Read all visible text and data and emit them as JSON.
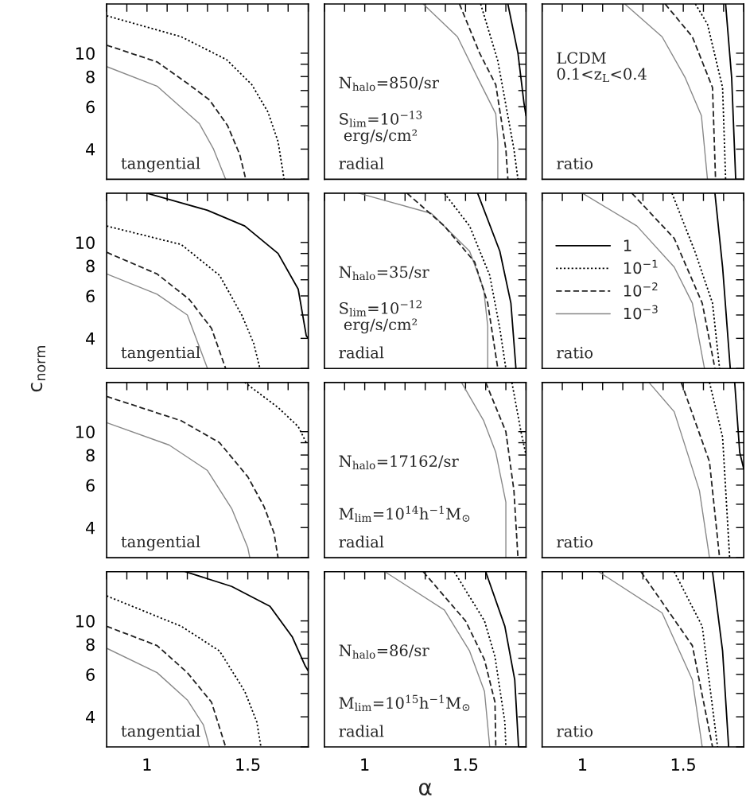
{
  "chart_data": [
    {
      "type": "line",
      "log": "y",
      "xlim": [
        0.8,
        1.8
      ],
      "ylim": [
        3,
        16
      ],
      "tick_labels": "y",
      "xticks": [
        {
          "value": 0.8,
          "label": null
        },
        {
          "value": 0.9,
          "label": null
        },
        1,
        {
          "value": 1.1,
          "label": null
        },
        {
          "value": 1.2,
          "label": null
        },
        {
          "value": 1.3,
          "label": null
        },
        {
          "value": 1.4,
          "label": null
        },
        1.5,
        {
          "value": 1.6,
          "label": null
        },
        {
          "value": 1.7,
          "label": null
        },
        {
          "value": 1.8,
          "label": null
        }
      ],
      "yticks": [
        {
          "value": 3,
          "label": null
        },
        4,
        {
          "value": 5,
          "label": null
        },
        6,
        {
          "value": 7,
          "label": null
        },
        8,
        {
          "value": 9,
          "label": null
        },
        10
      ],
      "annotations": [
        "tangential"
      ],
      "series": [
        {
          "color": "#000000",
          "line_style": "dotted",
          "x": [
            0.8,
            1.17,
            1.395,
            1.52,
            1.6,
            1.65,
            1.68
          ],
          "values": [
            14.3,
            11.7,
            9.4,
            7.4,
            5.7,
            4.3,
            3.0
          ]
        },
        {
          "color": "#222222",
          "line_style": "dashed",
          "x": [
            0.8,
            1.05,
            1.2,
            1.31,
            1.4,
            1.46,
            1.49
          ],
          "values": [
            10.8,
            9.2,
            7.5,
            6.4,
            5.0,
            3.8,
            3.0
          ]
        },
        {
          "color": "#888888",
          "line_style": "solid",
          "x": [
            0.8,
            1.05,
            1.26,
            1.33,
            1.39
          ],
          "values": [
            8.8,
            7.3,
            5.1,
            4.0,
            3.0
          ]
        }
      ]
    },
    {
      "type": "line",
      "log": "y",
      "xlim": [
        0.8,
        1.8
      ],
      "ylim": [
        3,
        16
      ],
      "tick_labels": false,
      "xticks": [
        {
          "value": 0.8,
          "label": null
        },
        {
          "value": 0.9,
          "label": null
        },
        1,
        {
          "value": 1.1,
          "label": null
        },
        {
          "value": 1.2,
          "label": null
        },
        {
          "value": 1.3,
          "label": null
        },
        {
          "value": 1.4,
          "label": null
        },
        1.5,
        {
          "value": 1.6,
          "label": null
        },
        {
          "value": 1.7,
          "label": null
        },
        {
          "value": 1.8,
          "label": null
        }
      ],
      "yticks": [
        {
          "value": 3,
          "label": null
        },
        4,
        {
          "value": 5,
          "label": null
        },
        6,
        {
          "value": 7,
          "label": null
        },
        8,
        {
          "value": 9,
          "label": null
        },
        10
      ],
      "annotations": [
        "N$_{halo}$=850/sr",
        "S$_{lim}$=10$^{−13}$\n erg/s/cm²",
        "radial"
      ],
      "series": [
        {
          "color": "#888888",
          "line_style": "solid",
          "x": [
            1.29,
            1.46,
            1.56,
            1.65,
            1.66,
            1.66
          ],
          "values": [
            16,
            11.7,
            7.9,
            5.6,
            4.3,
            3.0
          ]
        },
        {
          "color": "#222222",
          "line_style": "dashed",
          "x": [
            1.47,
            1.57,
            1.65,
            1.7,
            1.71
          ],
          "values": [
            16,
            10.0,
            7.4,
            4.0,
            3.0
          ]
        },
        {
          "color": "#000000",
          "line_style": "dotted",
          "x": [
            1.575,
            1.66,
            1.74,
            1.76
          ],
          "values": [
            16,
            9.3,
            4.0,
            3.0
          ]
        },
        {
          "color": "#000000",
          "line_style": "solid",
          "x": [
            1.71,
            1.76,
            1.79,
            1.8
          ],
          "values": [
            16,
            10,
            6.2,
            5.5
          ]
        }
      ]
    },
    {
      "type": "line",
      "log": "y",
      "xlim": [
        0.8,
        1.8
      ],
      "ylim": [
        3,
        16
      ],
      "tick_labels": false,
      "xticks": [
        {
          "value": 0.8,
          "label": null
        },
        {
          "value": 0.9,
          "label": null
        },
        1,
        {
          "value": 1.1,
          "label": null
        },
        {
          "value": 1.2,
          "label": null
        },
        {
          "value": 1.3,
          "label": null
        },
        {
          "value": 1.4,
          "label": null
        },
        1.5,
        {
          "value": 1.6,
          "label": null
        },
        {
          "value": 1.7,
          "label": null
        },
        {
          "value": 1.8,
          "label": null
        }
      ],
      "yticks": [
        {
          "value": 3,
          "label": null
        },
        4,
        {
          "value": 5,
          "label": null
        },
        6,
        {
          "value": 7,
          "label": null
        },
        8,
        {
          "value": 9,
          "label": null
        },
        10
      ],
      "annotations": [
        "LCDM\n0.1<z$_{L}$<0.4",
        "ratio"
      ],
      "series": [
        {
          "color": "#888888",
          "line_style": "solid",
          "x": [
            1.21,
            1.395,
            1.51,
            1.59,
            1.62
          ],
          "values": [
            16,
            11.7,
            7.9,
            5.5,
            3.0
          ]
        },
        {
          "color": "#222222",
          "line_style": "dashed",
          "x": [
            1.41,
            1.545,
            1.645,
            1.66
          ],
          "values": [
            16,
            11.7,
            7.2,
            3.0
          ]
        },
        {
          "color": "#000000",
          "line_style": "dotted",
          "x": [
            1.56,
            1.62,
            1.695,
            1.71
          ],
          "values": [
            16,
            13.2,
            7.2,
            3.0
          ]
        },
        {
          "color": "#000000",
          "line_style": "solid",
          "x": [
            1.71,
            1.74,
            1.76
          ],
          "values": [
            16,
            7.9,
            3.0
          ]
        }
      ]
    },
    {
      "type": "line",
      "log": "y",
      "xlim": [
        0.8,
        1.8
      ],
      "ylim": [
        3,
        16
      ],
      "tick_labels": "y",
      "ylabel": "c$_{norm}$",
      "xticks": [
        {
          "value": 0.8,
          "label": null
        },
        {
          "value": 0.9,
          "label": null
        },
        1,
        {
          "value": 1.1,
          "label": null
        },
        {
          "value": 1.2,
          "label": null
        },
        {
          "value": 1.3,
          "label": null
        },
        {
          "value": 1.4,
          "label": null
        },
        1.5,
        {
          "value": 1.6,
          "label": null
        },
        {
          "value": 1.7,
          "label": null
        },
        {
          "value": 1.8,
          "label": null
        }
      ],
      "yticks": [
        {
          "value": 3,
          "label": null
        },
        4,
        {
          "value": 5,
          "label": null
        },
        6,
        {
          "value": 7,
          "label": null
        },
        8,
        {
          "value": 9,
          "label": null
        },
        10
      ],
      "annotations": [
        "tangential"
      ],
      "series": [
        {
          "color": "#000000",
          "line_style": "solid",
          "x": [
            1.0,
            1.3,
            1.485,
            1.65,
            1.75,
            1.79,
            1.8
          ],
          "values": [
            16,
            13.6,
            11.7,
            9.0,
            6.4,
            4.1,
            4.0
          ]
        },
        {
          "color": "#000000",
          "line_style": "dotted",
          "x": [
            0.8,
            1.17,
            1.36,
            1.47,
            1.53,
            1.56
          ],
          "values": [
            11.7,
            9.8,
            7.3,
            5.0,
            3.8,
            3.0
          ]
        },
        {
          "color": "#222222",
          "line_style": "dashed",
          "x": [
            0.8,
            1.05,
            1.21,
            1.32,
            1.39
          ],
          "values": [
            9.1,
            7.4,
            5.8,
            4.4,
            3.0
          ]
        },
        {
          "color": "#888888",
          "line_style": "solid",
          "x": [
            0.8,
            1.05,
            1.2,
            1.3
          ],
          "values": [
            7.4,
            6.1,
            5.0,
            3.0
          ]
        }
      ]
    },
    {
      "type": "line",
      "log": "y",
      "xlim": [
        0.8,
        1.8
      ],
      "ylim": [
        3,
        16
      ],
      "tick_labels": false,
      "xticks": [
        {
          "value": 0.8,
          "label": null
        },
        {
          "value": 0.9,
          "label": null
        },
        1,
        {
          "value": 1.1,
          "label": null
        },
        {
          "value": 1.2,
          "label": null
        },
        {
          "value": 1.3,
          "label": null
        },
        {
          "value": 1.4,
          "label": null
        },
        1.5,
        {
          "value": 1.6,
          "label": null
        },
        {
          "value": 1.7,
          "label": null
        },
        {
          "value": 1.8,
          "label": null
        }
      ],
      "yticks": [
        {
          "value": 3,
          "label": null
        },
        4,
        {
          "value": 5,
          "label": null
        },
        6,
        {
          "value": 7,
          "label": null
        },
        8,
        {
          "value": 9,
          "label": null
        },
        10
      ],
      "annotations": [
        "N$_{halo}$=35/sr",
        "S$_{lim}$=10$^{−12}$\n erg/s/cm²",
        "radial"
      ],
      "series": [
        {
          "color": "#888888",
          "line_style": "solid",
          "x": [
            0.97,
            1.33,
            1.52,
            1.59,
            1.61,
            1.61
          ],
          "values": [
            16,
            13.2,
            9.2,
            6.4,
            4.5,
            3.0
          ]
        },
        {
          "color": "#222222",
          "line_style": "dashed",
          "x": [
            1.21,
            1.395,
            1.545,
            1.61,
            1.66
          ],
          "values": [
            16,
            11.7,
            8.3,
            5.6,
            3.0
          ]
        },
        {
          "color": "#000000",
          "line_style": "dotted",
          "x": [
            1.395,
            1.52,
            1.62,
            1.67,
            1.7
          ],
          "values": [
            16,
            11.7,
            7.3,
            4.4,
            3.0
          ]
        },
        {
          "color": "#000000",
          "line_style": "solid",
          "x": [
            1.56,
            1.67,
            1.725,
            1.75
          ],
          "values": [
            16,
            9.2,
            5.6,
            3.0
          ]
        }
      ]
    },
    {
      "type": "line",
      "log": "y",
      "xlim": [
        0.8,
        1.8
      ],
      "ylim": [
        3,
        16
      ],
      "tick_labels": false,
      "legend": "center left",
      "xticks": [
        {
          "value": 0.8,
          "label": null
        },
        {
          "value": 0.9,
          "label": null
        },
        1,
        {
          "value": 1.1,
          "label": null
        },
        {
          "value": 1.2,
          "label": null
        },
        {
          "value": 1.3,
          "label": null
        },
        {
          "value": 1.4,
          "label": null
        },
        1.5,
        {
          "value": 1.6,
          "label": null
        },
        {
          "value": 1.7,
          "label": null
        },
        {
          "value": 1.8,
          "label": null
        }
      ],
      "yticks": [
        {
          "value": 3,
          "label": null
        },
        4,
        {
          "value": 5,
          "label": null
        },
        6,
        {
          "value": 7,
          "label": null
        },
        8,
        {
          "value": 9,
          "label": null
        },
        10
      ],
      "annotations": [
        "ratio"
      ],
      "series": [
        {
          "name": "1",
          "color": "#000000",
          "line_style": "solid",
          "x": [
            1.657,
            1.695,
            1.733
          ],
          "values": [
            16,
            7.9,
            3.0
          ]
        },
        {
          "name": "10$^{−1}$",
          "color": "#000000",
          "line_style": "dotted",
          "x": [
            1.444,
            1.557,
            1.645,
            1.68
          ],
          "values": [
            16,
            9.2,
            5.6,
            3.0
          ]
        },
        {
          "name": "10$^{−2}$",
          "color": "#222222",
          "line_style": "dashed",
          "x": [
            1.245,
            1.455,
            1.594,
            1.657
          ],
          "values": [
            16,
            10.4,
            5.6,
            3.0
          ]
        },
        {
          "name": "10$^{−3}$",
          "color": "#888888",
          "line_style": "solid",
          "x": [
            1.0,
            1.27,
            1.455,
            1.545,
            1.605
          ],
          "values": [
            16,
            11.7,
            7.9,
            5.6,
            3.0
          ]
        }
      ]
    },
    {
      "type": "line",
      "log": "y",
      "xlim": [
        0.8,
        1.8
      ],
      "ylim": [
        3,
        16
      ],
      "tick_labels": "y",
      "xticks": [
        {
          "value": 0.8,
          "label": null
        },
        {
          "value": 0.9,
          "label": null
        },
        1,
        {
          "value": 1.1,
          "label": null
        },
        {
          "value": 1.2,
          "label": null
        },
        {
          "value": 1.3,
          "label": null
        },
        {
          "value": 1.4,
          "label": null
        },
        1.5,
        {
          "value": 1.6,
          "label": null
        },
        {
          "value": 1.7,
          "label": null
        },
        {
          "value": 1.8,
          "label": null
        }
      ],
      "yticks": [
        {
          "value": 3,
          "label": null
        },
        4,
        {
          "value": 5,
          "label": null
        },
        6,
        {
          "value": 7,
          "label": null
        },
        8,
        {
          "value": 9,
          "label": null
        },
        10
      ],
      "annotations": [
        "tangential"
      ],
      "series": [
        {
          "color": "#000000",
          "line_style": "dotted",
          "x": [
            1.485,
            1.65,
            1.75,
            1.79
          ],
          "values": [
            16,
            12.6,
            10.5,
            9.0
          ]
        },
        {
          "color": "#222222",
          "line_style": "dashed",
          "x": [
            0.8,
            1.17,
            1.36,
            1.5,
            1.58,
            1.63,
            1.65
          ],
          "values": [
            14.0,
            11.1,
            9.0,
            6.5,
            4.9,
            3.8,
            3.0
          ]
        },
        {
          "color": "#888888",
          "line_style": "solid",
          "x": [
            0.8,
            1.11,
            1.3,
            1.42,
            1.5,
            1.51
          ],
          "values": [
            10.9,
            8.8,
            6.9,
            4.8,
            3.3,
            3.0
          ]
        }
      ]
    },
    {
      "type": "line",
      "log": "y",
      "xlim": [
        0.8,
        1.8
      ],
      "ylim": [
        3,
        16
      ],
      "tick_labels": false,
      "xticks": [
        {
          "value": 0.8,
          "label": null
        },
        {
          "value": 0.9,
          "label": null
        },
        1,
        {
          "value": 1.1,
          "label": null
        },
        {
          "value": 1.2,
          "label": null
        },
        {
          "value": 1.3,
          "label": null
        },
        {
          "value": 1.4,
          "label": null
        },
        1.5,
        {
          "value": 1.6,
          "label": null
        },
        {
          "value": 1.7,
          "label": null
        },
        {
          "value": 1.8,
          "label": null
        }
      ],
      "yticks": [
        {
          "value": 3,
          "label": null
        },
        4,
        {
          "value": 5,
          "label": null
        },
        6,
        {
          "value": 7,
          "label": null
        },
        8,
        {
          "value": 9,
          "label": null
        },
        10
      ],
      "annotations": [
        "N$_{halo}$=17162/sr",
        "M$_{lim}$=10$^{14}$h$^{−1}$M$_{⊙}$",
        "radial"
      ],
      "series": [
        {
          "color": "#888888",
          "line_style": "solid",
          "x": [
            1.48,
            1.59,
            1.65,
            1.7,
            1.7
          ],
          "values": [
            16,
            11.1,
            8.2,
            5.1,
            3.0
          ]
        },
        {
          "color": "#222222",
          "line_style": "dashed",
          "x": [
            1.6,
            1.7,
            1.74,
            1.76
          ],
          "values": [
            16,
            10.0,
            5.7,
            3.0
          ]
        },
        {
          "color": "#000000",
          "line_style": "dotted",
          "x": [
            1.73,
            1.775,
            1.8
          ],
          "values": [
            16,
            10,
            8.0
          ]
        }
      ]
    },
    {
      "type": "line",
      "log": "y",
      "xlim": [
        0.8,
        1.8
      ],
      "ylim": [
        3,
        16
      ],
      "tick_labels": false,
      "xticks": [
        {
          "value": 0.8,
          "label": null
        },
        {
          "value": 0.9,
          "label": null
        },
        1,
        {
          "value": 1.1,
          "label": null
        },
        {
          "value": 1.2,
          "label": null
        },
        {
          "value": 1.3,
          "label": null
        },
        {
          "value": 1.4,
          "label": null
        },
        1.5,
        {
          "value": 1.6,
          "label": null
        },
        {
          "value": 1.7,
          "label": null
        },
        {
          "value": 1.8,
          "label": null
        }
      ],
      "yticks": [
        {
          "value": 3,
          "label": null
        },
        4,
        {
          "value": 5,
          "label": null
        },
        6,
        {
          "value": 7,
          "label": null
        },
        8,
        {
          "value": 9,
          "label": null
        },
        10
      ],
      "annotations": [
        "ratio"
      ],
      "series": [
        {
          "color": "#888888",
          "line_style": "solid",
          "x": [
            1.33,
            1.455,
            1.58,
            1.63
          ],
          "values": [
            16,
            12.1,
            5.7,
            3.0
          ]
        },
        {
          "color": "#222222",
          "line_style": "dashed",
          "x": [
            1.49,
            1.63,
            1.68
          ],
          "values": [
            16,
            7.5,
            3.0
          ]
        },
        {
          "color": "#000000",
          "line_style": "dotted",
          "x": [
            1.63,
            1.695,
            1.73
          ],
          "values": [
            16,
            9.5,
            3.0
          ]
        },
        {
          "color": "#000000",
          "line_style": "solid",
          "x": [
            1.755,
            1.78,
            1.8
          ],
          "values": [
            16,
            8.2,
            7.0
          ]
        }
      ]
    },
    {
      "type": "line",
      "log": "y",
      "xlim": [
        0.8,
        1.8
      ],
      "ylim": [
        3,
        16
      ],
      "xticks": [
        {
          "value": 0.8,
          "label": null
        },
        {
          "value": 0.9,
          "label": null
        },
        1,
        {
          "value": 1.1,
          "label": null
        },
        {
          "value": 1.2,
          "label": null
        },
        {
          "value": 1.3,
          "label": null
        },
        {
          "value": 1.4,
          "label": null
        },
        1.5,
        {
          "value": 1.6,
          "label": null
        },
        {
          "value": 1.7,
          "label": null
        },
        {
          "value": 1.8,
          "label": null
        }
      ],
      "yticks": [
        {
          "value": 3,
          "label": null
        },
        4,
        {
          "value": 5,
          "label": null
        },
        6,
        {
          "value": 7,
          "label": null
        },
        8,
        {
          "value": 9,
          "label": null
        },
        10
      ],
      "annotations": [
        "tangential"
      ],
      "series": [
        {
          "color": "#000000",
          "line_style": "solid",
          "x": [
            1.19,
            1.42,
            1.61,
            1.72,
            1.785,
            1.8
          ],
          "values": [
            16,
            13.9,
            11.5,
            8.6,
            6.5,
            6.2
          ]
        },
        {
          "color": "#000000",
          "line_style": "dotted",
          "x": [
            0.8,
            1.17,
            1.36,
            1.485,
            1.545,
            1.565
          ],
          "values": [
            12.7,
            9.5,
            7.5,
            5.1,
            3.8,
            3.0
          ]
        },
        {
          "color": "#222222",
          "line_style": "dashed",
          "x": [
            0.8,
            1.05,
            1.2,
            1.32,
            1.39
          ],
          "values": [
            9.5,
            7.9,
            6.1,
            4.6,
            3.0
          ]
        },
        {
          "color": "#888888",
          "line_style": "solid",
          "x": [
            0.8,
            1.05,
            1.2,
            1.28,
            1.31
          ],
          "values": [
            7.7,
            6.1,
            4.7,
            3.7,
            3.0
          ]
        }
      ]
    },
    {
      "type": "line",
      "log": "y",
      "xlim": [
        0.8,
        1.8
      ],
      "ylim": [
        3,
        16
      ],
      "tick_labels": "x",
      "xlabel": "α",
      "xticks": [
        {
          "value": 0.8,
          "label": null
        },
        {
          "value": 0.9,
          "label": null
        },
        1,
        {
          "value": 1.1,
          "label": null
        },
        {
          "value": 1.2,
          "label": null
        },
        {
          "value": 1.3,
          "label": null
        },
        {
          "value": 1.4,
          "label": null
        },
        1.5,
        {
          "value": 1.6,
          "label": null
        },
        {
          "value": 1.7,
          "label": null
        },
        {
          "value": 1.8,
          "label": null
        }
      ],
      "yticks": [
        {
          "value": 3,
          "label": null
        },
        4,
        {
          "value": 5,
          "label": null
        },
        6,
        {
          "value": 7,
          "label": null
        },
        8,
        {
          "value": 9,
          "label": null
        },
        10
      ],
      "annotations": [
        "N$_{halo}$=86/sr",
        "M$_{lim}$=10$^{15}$h$^{−1}$M$_{⊙}$",
        "radial"
      ],
      "series": [
        {
          "color": "#888888",
          "line_style": "solid",
          "x": [
            1.1,
            1.395,
            1.52,
            1.594,
            1.62
          ],
          "values": [
            16,
            11.1,
            7.5,
            5.1,
            3.0
          ]
        },
        {
          "color": "#222222",
          "line_style": "dashed",
          "x": [
            1.29,
            1.5,
            1.594,
            1.646,
            1.65
          ],
          "values": [
            16,
            10.0,
            6.9,
            4.6,
            3.0
          ]
        },
        {
          "color": "#000000",
          "line_style": "dotted",
          "x": [
            1.444,
            1.594,
            1.646,
            1.695,
            1.7
          ],
          "values": [
            16,
            10,
            7.1,
            3.8,
            3.0
          ]
        },
        {
          "color": "#000000",
          "line_style": "solid",
          "x": [
            1.6,
            1.695,
            1.744,
            1.763
          ],
          "values": [
            16,
            9.5,
            5.7,
            3.0
          ]
        }
      ]
    },
    {
      "type": "line",
      "log": "y",
      "xlim": [
        0.8,
        1.8
      ],
      "ylim": [
        3,
        16
      ],
      "tick_labels": "x",
      "xticks": [
        {
          "value": 0.8,
          "label": null
        },
        {
          "value": 0.9,
          "label": null
        },
        1,
        {
          "value": 1.1,
          "label": null
        },
        {
          "value": 1.2,
          "label": null
        },
        {
          "value": 1.3,
          "label": null
        },
        {
          "value": 1.4,
          "label": null
        },
        1.5,
        {
          "value": 1.6,
          "label": null
        },
        {
          "value": 1.7,
          "label": null
        },
        {
          "value": 1.8,
          "label": null
        }
      ],
      "yticks": [
        {
          "value": 3,
          "label": null
        },
        4,
        {
          "value": 5,
          "label": null
        },
        6,
        {
          "value": 7,
          "label": null
        },
        8,
        {
          "value": 9,
          "label": null
        },
        10
      ],
      "annotations": [
        "ratio"
      ],
      "series": [
        {
          "color": "#888888",
          "line_style": "solid",
          "x": [
            1.08,
            1.395,
            1.545,
            1.594
          ],
          "values": [
            16,
            10.8,
            5.7,
            3.0
          ]
        },
        {
          "color": "#222222",
          "line_style": "dashed",
          "x": [
            1.29,
            1.545,
            1.645
          ],
          "values": [
            16,
            7.9,
            3.0
          ]
        },
        {
          "color": "#000000",
          "line_style": "dotted",
          "x": [
            1.455,
            1.594,
            1.67
          ],
          "values": [
            16,
            9.5,
            3.0
          ]
        },
        {
          "color": "#000000",
          "line_style": "solid",
          "x": [
            1.645,
            1.695,
            1.725
          ],
          "values": [
            16,
            7.5,
            3.0
          ]
        }
      ]
    }
  ]
}
